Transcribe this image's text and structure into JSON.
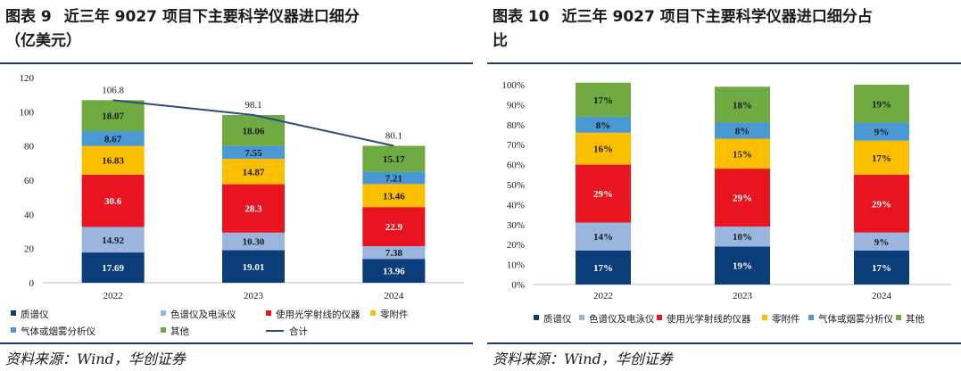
{
  "figures": [
    {
      "label": "图表 9",
      "title_line1": "近三年 9027 项目下主要科学仪器进口细分",
      "title_line2": "（亿美元）",
      "source": "资料来源：Wind，华创证券"
    },
    {
      "label": "图表 10",
      "title_line1": "近三年 9027 项目下主要科学仪器进口细分占",
      "title_line2": "比",
      "source": "资料来源：Wind，华创证券"
    }
  ],
  "colors": {
    "质谱仪": "#0b3d7a",
    "色谱仪及电泳仪": "#9ab6df",
    "使用光学射线的仪器": "#e8141f",
    "零附件": "#fcbf00",
    "气体或烟雾分析仪": "#4a98d4",
    "其他": "#6faa43",
    "合计": "#2b4a80"
  },
  "chart_data": [
    {
      "type": "bar",
      "stacked": true,
      "categories": [
        "2022",
        "2023",
        "2024"
      ],
      "series": [
        {
          "name": "质谱仪",
          "values": [
            17.69,
            19.01,
            13.96
          ],
          "labels": [
            "17.69",
            "19.01",
            "13.96"
          ]
        },
        {
          "name": "色谱仪及电泳仪",
          "values": [
            14.92,
            10.3,
            7.38
          ],
          "labels": [
            "14.92",
            "10.30",
            "7.38"
          ]
        },
        {
          "name": "使用光学射线的仪器",
          "values": [
            30.6,
            28.3,
            22.9
          ],
          "labels": [
            "30.6",
            "28.3",
            "22.9"
          ]
        },
        {
          "name": "零附件",
          "values": [
            16.83,
            14.87,
            13.46
          ],
          "labels": [
            "16.83",
            "14.87",
            "13.46"
          ]
        },
        {
          "name": "气体或烟雾分析仪",
          "values": [
            8.67,
            7.55,
            7.21
          ],
          "labels": [
            "8.67",
            "7.55",
            "7.21"
          ]
        },
        {
          "name": "其他",
          "values": [
            18.07,
            18.06,
            15.17
          ],
          "labels": [
            "18.07",
            "18.06",
            "15.17"
          ]
        }
      ],
      "line": {
        "name": "合计",
        "values": [
          106.8,
          98.1,
          80.1
        ],
        "labels": [
          "106.8",
          "98.1",
          "80.1"
        ]
      },
      "ylim": [
        0,
        120
      ],
      "yticks": [
        "0",
        "20",
        "40",
        "60",
        "80",
        "100",
        "120"
      ],
      "legend_position": "bottom",
      "grid": false
    },
    {
      "type": "bar",
      "stacked": true,
      "percent": true,
      "categories": [
        "2022",
        "2023",
        "2024"
      ],
      "series": [
        {
          "name": "质谱仪",
          "values": [
            17,
            19,
            17
          ],
          "labels": [
            "17%",
            "19%",
            "17%"
          ]
        },
        {
          "name": "色谱仪及电泳仪",
          "values": [
            14,
            10,
            9
          ],
          "labels": [
            "14%",
            "10%",
            "9%"
          ]
        },
        {
          "name": "使用光学射线的仪器",
          "values": [
            29,
            29,
            29
          ],
          "labels": [
            "29%",
            "29%",
            "29%"
          ]
        },
        {
          "name": "零附件",
          "values": [
            16,
            15,
            17
          ],
          "labels": [
            "16%",
            "15%",
            "17%"
          ]
        },
        {
          "name": "气体或烟雾分析仪",
          "values": [
            8,
            8,
            9
          ],
          "labels": [
            "8%",
            "8%",
            "9%"
          ]
        },
        {
          "name": "其他",
          "values": [
            17,
            18,
            19
          ],
          "labels": [
            "17%",
            "18%",
            "19%"
          ]
        }
      ],
      "ylim": [
        0,
        100
      ],
      "yticks": [
        "0%",
        "10%",
        "20%",
        "30%",
        "40%",
        "50%",
        "60%",
        "70%",
        "80%",
        "90%",
        "100%"
      ],
      "legend_position": "bottom",
      "grid": false
    }
  ]
}
